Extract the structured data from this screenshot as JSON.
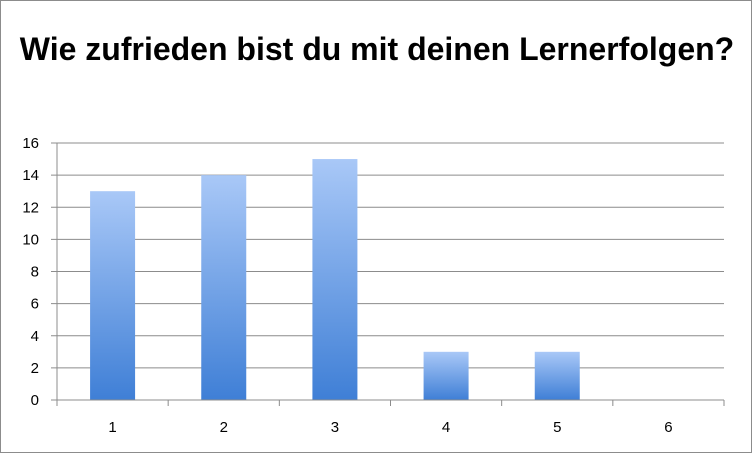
{
  "chart_data": {
    "type": "bar",
    "title": "Wie zufrieden bist du mit deinen Lernerfolgen?",
    "categories": [
      "1",
      "2",
      "3",
      "4",
      "5",
      "6"
    ],
    "values": [
      13,
      14,
      15,
      3,
      3,
      0
    ],
    "xlabel": "",
    "ylabel": "",
    "ylim": [
      0,
      16
    ],
    "yticks": [
      0,
      2,
      4,
      6,
      8,
      10,
      12,
      14,
      16
    ],
    "grid": true,
    "legend": "none",
    "colors": {
      "bar_top": "#a9c8f7",
      "bar_bottom": "#3f7fd6",
      "grid": "#8c8c8c",
      "axis": "#8c8c8c"
    }
  }
}
